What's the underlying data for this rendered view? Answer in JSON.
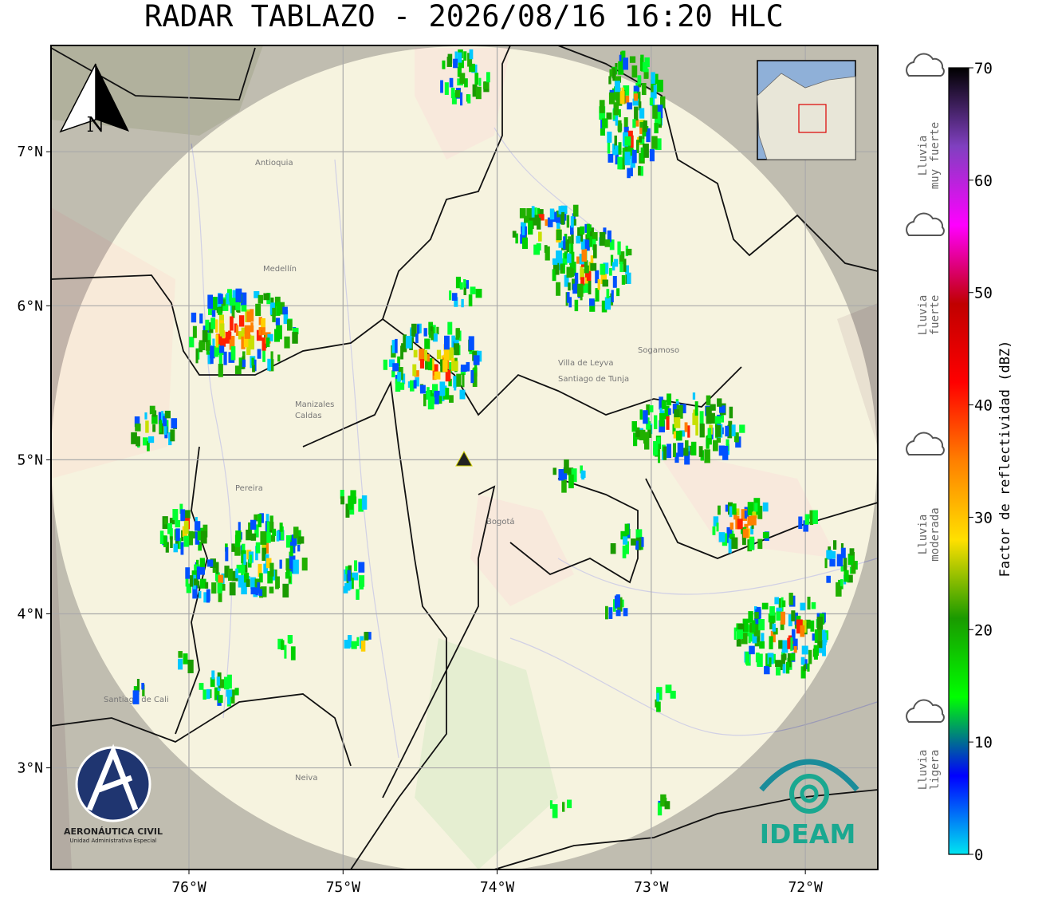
{
  "title": "RADAR TABLAZO - 2026/08/16 16:20 HLC",
  "map": {
    "xlim": [
      -76.895,
      -71.53
    ],
    "ylim": [
      2.34,
      7.69
    ],
    "xticks": [
      {
        "value": -76,
        "label": "76°W"
      },
      {
        "value": -75,
        "label": "75°W"
      },
      {
        "value": -74,
        "label": "74°W"
      },
      {
        "value": -73,
        "label": "73°W"
      },
      {
        "value": -72,
        "label": "72°W"
      }
    ],
    "yticks": [
      {
        "value": 3,
        "label": "3°N"
      },
      {
        "value": 4,
        "label": "4°N"
      },
      {
        "value": 5,
        "label": "5°N"
      },
      {
        "value": 6,
        "label": "6°N"
      },
      {
        "value": 7,
        "label": "7°N"
      }
    ],
    "grid": true,
    "places": [
      "Medellín",
      "Manizales",
      "Pereira",
      "Bogotá",
      "Santiago de Cali",
      "Neiva",
      "Villa de Leyva",
      "Santiago de Tunja",
      "Sogamoso",
      "Antioquia",
      "Caldas"
    ],
    "north_label": "N"
  },
  "colorbar": {
    "label": "Factor de reflectividad (dBZ)",
    "range": [
      0,
      70
    ],
    "ticks": [
      0,
      10,
      20,
      30,
      40,
      50,
      60,
      70
    ],
    "colors": [
      "#00e5f0",
      "#0000ff",
      "#00ff00",
      "#1a9a00",
      "#ffe000",
      "#ff8000",
      "#ff0000",
      "#c00000",
      "#ff00ff",
      "#8040c0",
      "#000000"
    ]
  },
  "rain_categories": [
    {
      "lines": [
        "Lluvia",
        "muy fuerte"
      ]
    },
    {
      "lines": [
        "Lluvia",
        "fuerte"
      ]
    },
    {
      "lines": [
        "Lluvia",
        "moderada"
      ]
    },
    {
      "lines": [
        "Lluvia",
        "ligera"
      ]
    }
  ],
  "logos": {
    "aerocivil": "AERONÁUTICA CIVIL",
    "aerocivil_sub": "Unidad Administrativa Especial",
    "ideam": "IDEAM"
  }
}
